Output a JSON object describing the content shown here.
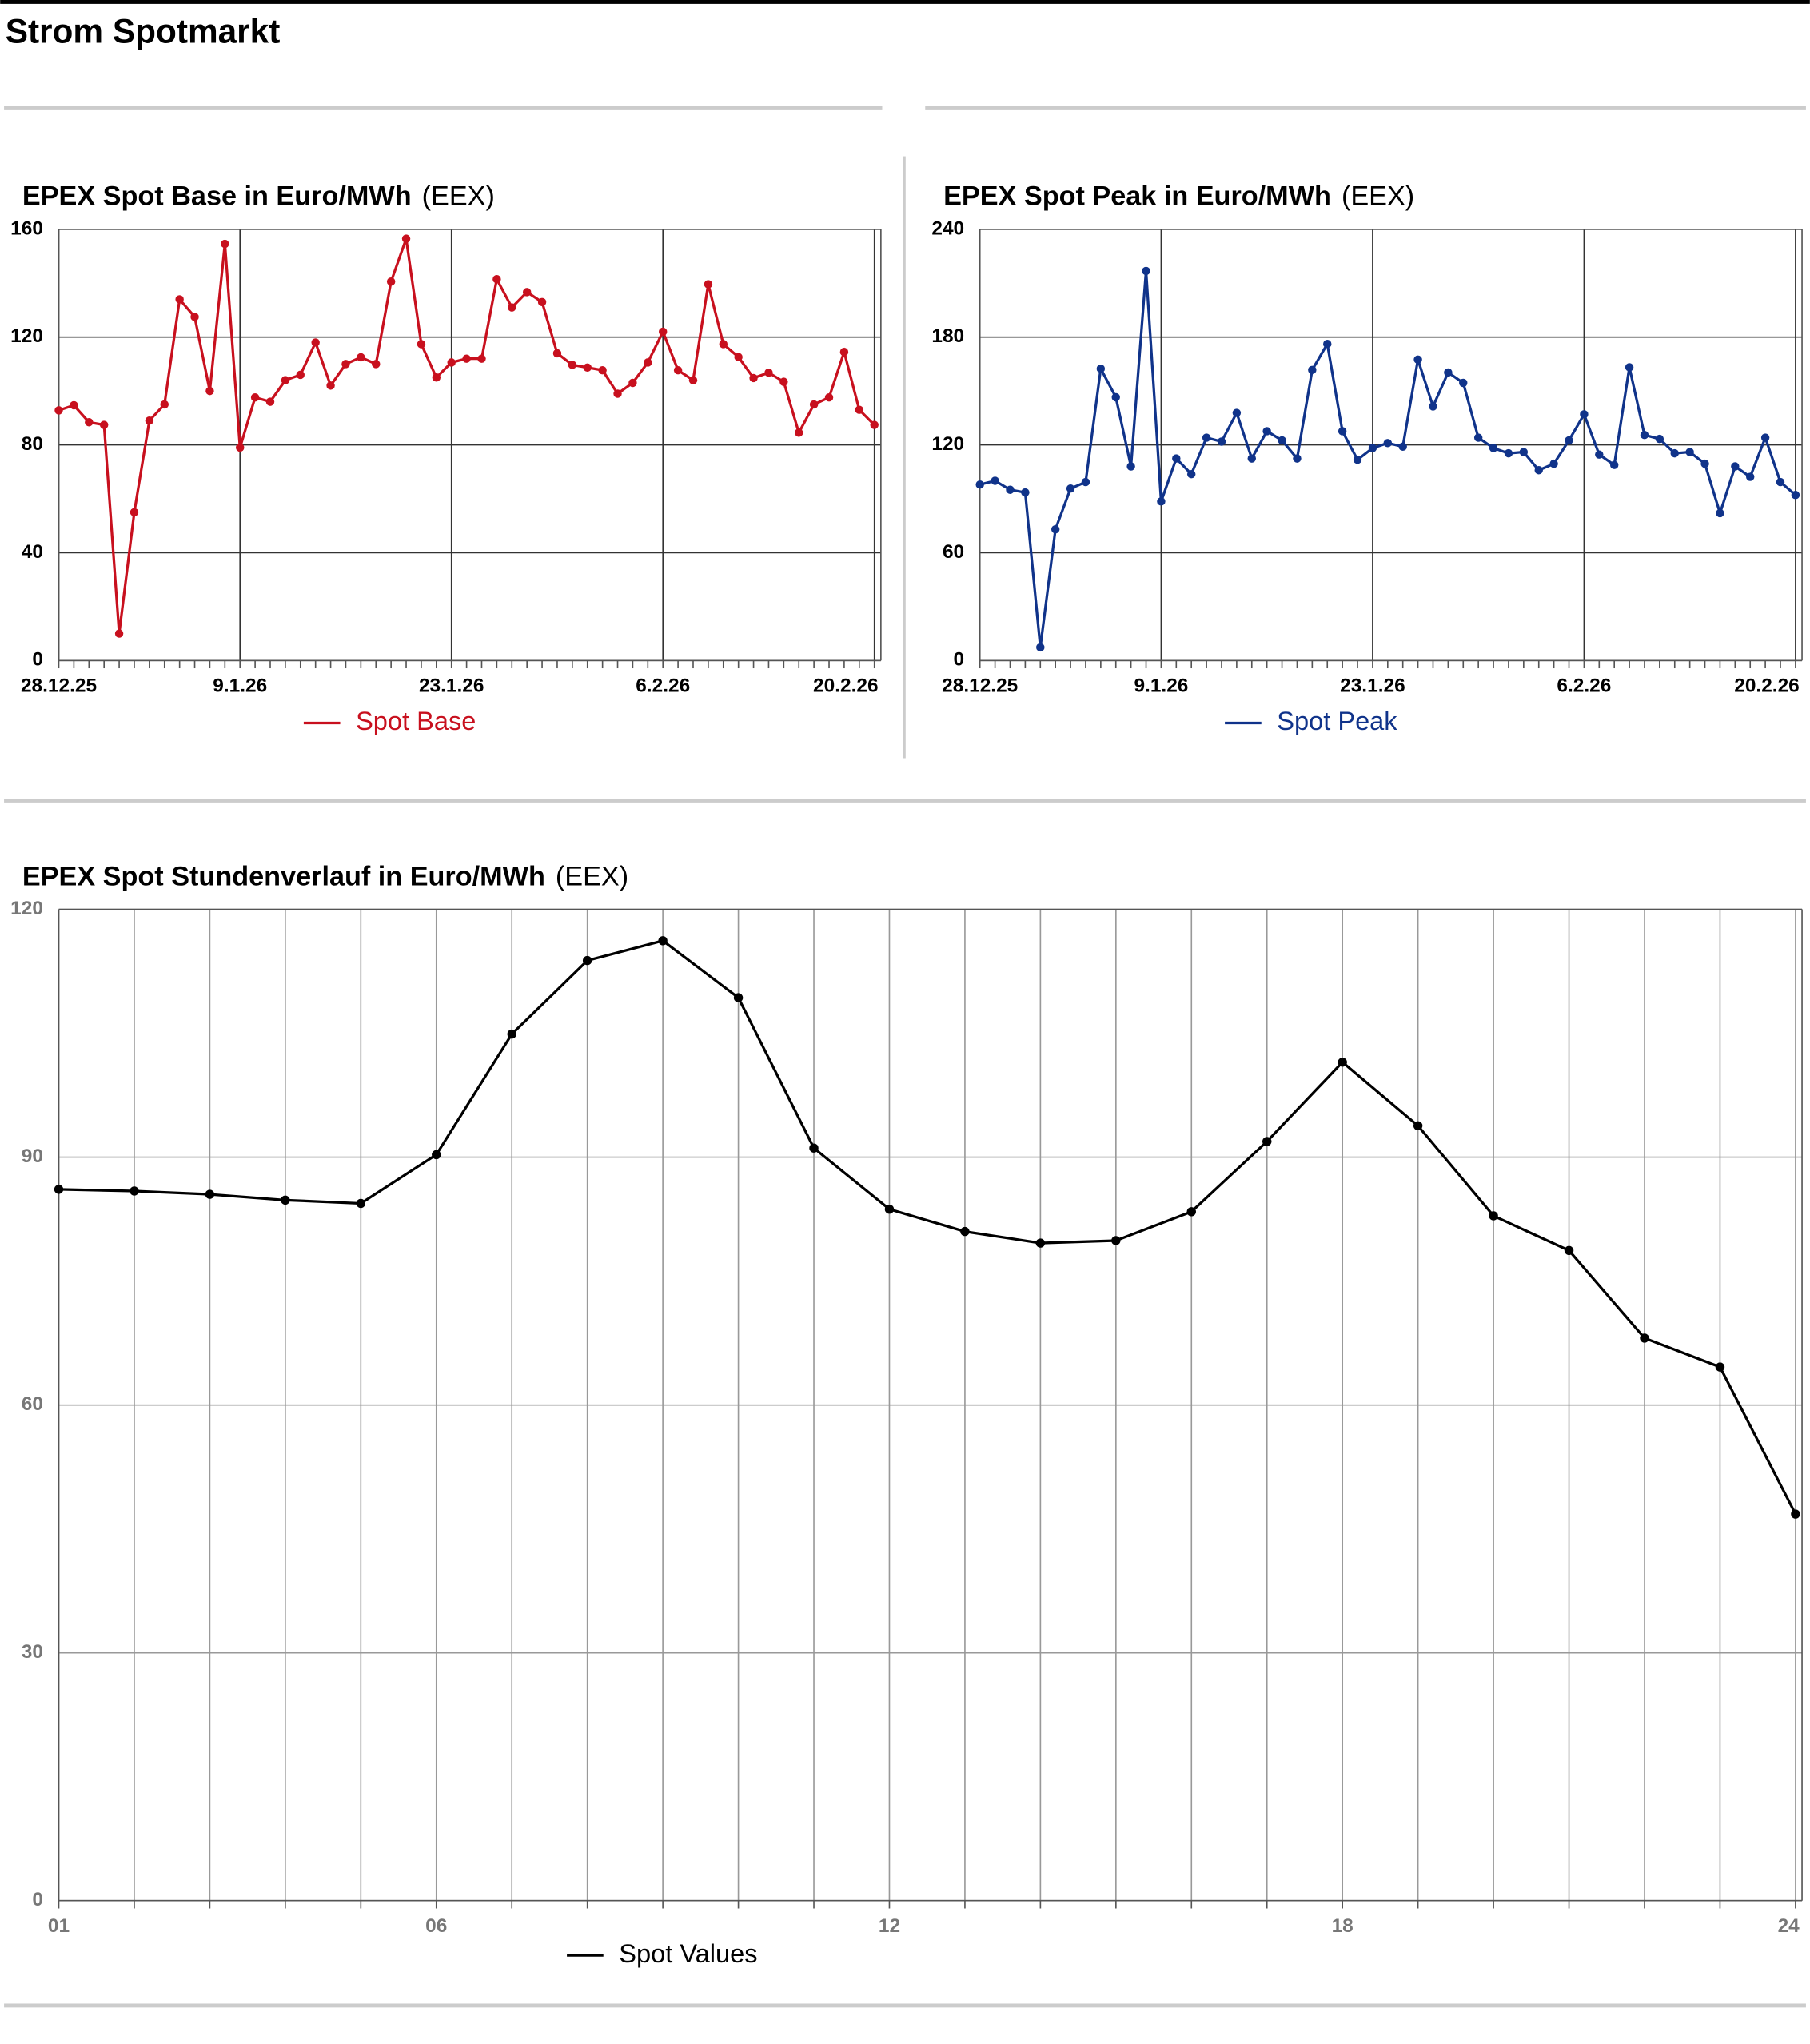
{
  "header": {
    "title": "Strom Spotmarkt"
  },
  "chart_data": [
    {
      "type": "line",
      "title": "EPEX Spot Base in Euro/MWh",
      "subtitle": "(EEX)",
      "categories": [
        "28.12.25",
        null,
        null,
        null,
        null,
        null,
        null,
        null,
        null,
        null,
        null,
        null,
        "9.1.26",
        null,
        null,
        null,
        null,
        null,
        null,
        null,
        null,
        null,
        null,
        null,
        null,
        null,
        "23.1.26",
        null,
        null,
        null,
        null,
        null,
        null,
        null,
        null,
        null,
        null,
        null,
        null,
        null,
        "6.2.26",
        null,
        null,
        null,
        null,
        null,
        null,
        null,
        null,
        null,
        null,
        null,
        null,
        null,
        "20.2.26"
      ],
      "series": [
        {
          "name": "Spot Base",
          "color": "#c8101e",
          "values": [
            92.8,
            94.7,
            88.4,
            87.4,
            10,
            55,
            89,
            95,
            134,
            127.5,
            100,
            154.6,
            79,
            97.6,
            96,
            104,
            106,
            118,
            102,
            110,
            112.5,
            110,
            140.6,
            156.5,
            117.4,
            105,
            110.6,
            112,
            112,
            141.5,
            131,
            136.7,
            133,
            114,
            109.7,
            108.7,
            107.7,
            99,
            103,
            110.6,
            122,
            107.7,
            104,
            139.6,
            117.4,
            112.6,
            104.8,
            106.8,
            103.4,
            84.5,
            95,
            97.6,
            114.5,
            93,
            87.4
          ]
        }
      ],
      "ylim": [
        0,
        160
      ],
      "yticks": [
        0,
        40,
        80,
        120,
        160
      ],
      "grid": true
    },
    {
      "type": "line",
      "title": "EPEX Spot Peak in Euro/MWh",
      "subtitle": "(EEX)",
      "categories": [
        "28.12.25",
        null,
        null,
        null,
        null,
        null,
        null,
        null,
        null,
        null,
        null,
        null,
        "9.1.26",
        null,
        null,
        null,
        null,
        null,
        null,
        null,
        null,
        null,
        null,
        null,
        null,
        null,
        "23.1.26",
        null,
        null,
        null,
        null,
        null,
        null,
        null,
        null,
        null,
        null,
        null,
        null,
        null,
        "6.2.26",
        null,
        null,
        null,
        null,
        null,
        null,
        null,
        null,
        null,
        null,
        null,
        null,
        null,
        "20.2.26"
      ],
      "series": [
        {
          "name": "Spot Peak",
          "color": "#10338a",
          "values": [
            97.9,
            100,
            95,
            93.5,
            7.3,
            73,
            95.7,
            99.3,
            162.4,
            146.5,
            108,
            216.8,
            88.5,
            112.4,
            103.7,
            124,
            121.8,
            137.8,
            112.4,
            127.6,
            122.5,
            112.4,
            161.7,
            176.2,
            127.6,
            111.7,
            118.2,
            121,
            119,
            167.5,
            141.4,
            160.3,
            154.5,
            124,
            118.2,
            115.3,
            116,
            105.9,
            109.5,
            122.5,
            137,
            114.6,
            108.8,
            163.2,
            125.5,
            123.3,
            115.3,
            116,
            109.5,
            82,
            108,
            102.2,
            124,
            99.3,
            92.1
          ]
        }
      ],
      "ylim": [
        0,
        240
      ],
      "yticks": [
        0,
        60,
        120,
        180,
        240
      ],
      "grid": true
    },
    {
      "type": "line",
      "title": "EPEX Spot Stundenverlauf in Euro/MWh",
      "subtitle": "(EEX)",
      "categories": [
        "01",
        null,
        null,
        null,
        null,
        "06",
        null,
        null,
        null,
        null,
        null,
        "12",
        null,
        null,
        null,
        null,
        null,
        "18",
        null,
        null,
        null,
        null,
        null,
        "24"
      ],
      "series": [
        {
          "name": "Spot Values",
          "color": "#000000",
          "values": [
            86.1,
            85.9,
            85.5,
            84.8,
            84.4,
            90.3,
            104.9,
            113.8,
            116.2,
            109.3,
            91.1,
            83.7,
            81,
            79.6,
            79.9,
            83.4,
            91.9,
            101.5,
            93.8,
            82.9,
            78.7,
            68.1,
            64.6,
            46.8
          ]
        }
      ],
      "ylim": [
        0,
        120
      ],
      "yticks": [
        0,
        30,
        60,
        90,
        120
      ],
      "grid": true
    }
  ]
}
